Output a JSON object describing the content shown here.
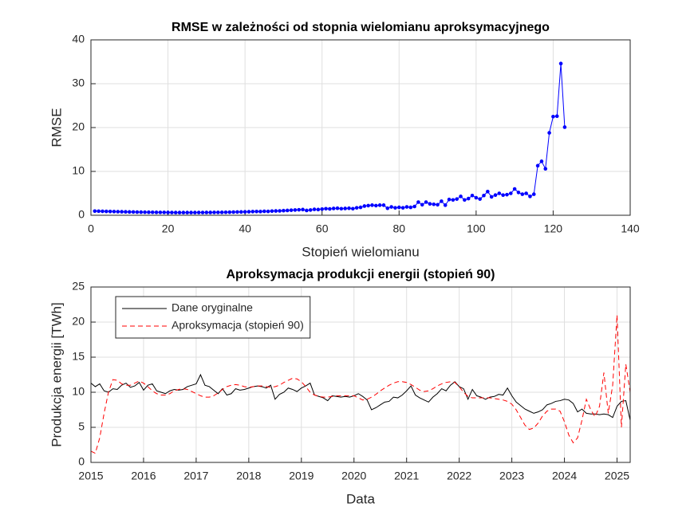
{
  "chart_data": [
    {
      "type": "line",
      "title": "RMSE w zależności od stopnia wielomianu aproksymacyjnego",
      "xlabel": "Stopień wielomianu",
      "ylabel": "RMSE",
      "xlim": [
        0,
        140
      ],
      "xticks": [
        0,
        20,
        40,
        60,
        80,
        100,
        120,
        140
      ],
      "ylim": [
        0,
        40
      ],
      "yticks": [
        0,
        10,
        20,
        30,
        40
      ],
      "grid": true,
      "x": [
        1,
        2,
        3,
        4,
        5,
        6,
        7,
        8,
        9,
        10,
        11,
        12,
        13,
        14,
        15,
        16,
        17,
        18,
        19,
        20,
        21,
        22,
        23,
        24,
        25,
        26,
        27,
        28,
        29,
        30,
        31,
        32,
        33,
        34,
        35,
        36,
        37,
        38,
        39,
        40,
        41,
        42,
        43,
        44,
        45,
        46,
        47,
        48,
        49,
        50,
        51,
        52,
        53,
        54,
        55,
        56,
        57,
        58,
        59,
        60,
        61,
        62,
        63,
        64,
        65,
        66,
        67,
        68,
        69,
        70,
        71,
        72,
        73,
        74,
        75,
        76,
        77,
        78,
        79,
        80,
        81,
        82,
        83,
        84,
        85,
        86,
        87,
        88,
        89,
        90,
        91,
        92,
        93,
        94,
        95,
        96,
        97,
        98,
        99,
        100,
        101,
        102,
        103,
        104,
        105,
        106,
        107,
        108,
        109,
        110,
        111,
        112,
        113,
        114,
        115,
        116,
        117,
        118,
        119,
        120,
        121,
        122,
        123
      ],
      "series": [
        {
          "color": "#0000ff",
          "marker": "o",
          "values": [
            0.95,
            0.93,
            0.9,
            0.88,
            0.86,
            0.84,
            0.82,
            0.8,
            0.78,
            0.76,
            0.74,
            0.72,
            0.71,
            0.7,
            0.69,
            0.68,
            0.67,
            0.66,
            0.65,
            0.64,
            0.63,
            0.62,
            0.62,
            0.62,
            0.62,
            0.62,
            0.62,
            0.63,
            0.63,
            0.64,
            0.64,
            0.65,
            0.66,
            0.67,
            0.68,
            0.7,
            0.72,
            0.74,
            0.76,
            0.78,
            0.8,
            0.83,
            0.86,
            0.85,
            0.9,
            0.88,
            0.95,
            0.98,
            1.0,
            1.05,
            1.1,
            1.15,
            1.2,
            1.25,
            1.3,
            1.1,
            1.2,
            1.35,
            1.3,
            1.4,
            1.5,
            1.45,
            1.55,
            1.6,
            1.5,
            1.55,
            1.6,
            1.5,
            1.7,
            1.8,
            2.1,
            2.2,
            2.3,
            2.2,
            2.3,
            2.3,
            1.6,
            1.9,
            1.7,
            1.8,
            1.7,
            1.9,
            1.8,
            2.0,
            3.0,
            2.4,
            3.0,
            2.6,
            2.5,
            2.4,
            3.2,
            2.3,
            3.6,
            3.5,
            3.7,
            4.3,
            3.5,
            3.8,
            4.5,
            4.0,
            3.7,
            4.5,
            5.4,
            4.2,
            4.6,
            5.0,
            4.6,
            4.7,
            5.0,
            6.0,
            5.2,
            4.8,
            5.0,
            4.3,
            4.8,
            11.3,
            12.3,
            10.6,
            18.8,
            22.5,
            22.6,
            34.6,
            20.1
          ]
        }
      ]
    },
    {
      "type": "line",
      "title": "Aproksymacja produkcji energii (stopień 90)",
      "xlabel": "Data",
      "ylabel": "Produkcja energii [TWh]",
      "xlim": [
        2015,
        2025.25
      ],
      "xticks": [
        2015,
        2016,
        2017,
        2018,
        2019,
        2020,
        2021,
        2022,
        2023,
        2024,
        2025
      ],
      "ylim": [
        0,
        25
      ],
      "yticks": [
        0,
        5,
        10,
        15,
        20,
        25
      ],
      "grid": true,
      "legend": "northwest",
      "x": [
        2015,
        2015.083,
        2015.167,
        2015.25,
        2015.333,
        2015.417,
        2015.5,
        2015.583,
        2015.667,
        2015.75,
        2015.833,
        2015.917,
        2016,
        2016.083,
        2016.167,
        2016.25,
        2016.333,
        2016.417,
        2016.5,
        2016.583,
        2016.667,
        2016.75,
        2016.833,
        2016.917,
        2017,
        2017.083,
        2017.167,
        2017.25,
        2017.333,
        2017.417,
        2017.5,
        2017.583,
        2017.667,
        2017.75,
        2017.833,
        2017.917,
        2018,
        2018.083,
        2018.167,
        2018.25,
        2018.333,
        2018.417,
        2018.5,
        2018.583,
        2018.667,
        2018.75,
        2018.833,
        2018.917,
        2019,
        2019.083,
        2019.167,
        2019.25,
        2019.333,
        2019.417,
        2019.5,
        2019.583,
        2019.667,
        2019.75,
        2019.833,
        2019.917,
        2020,
        2020.083,
        2020.167,
        2020.25,
        2020.333,
        2020.417,
        2020.5,
        2020.583,
        2020.667,
        2020.75,
        2020.833,
        2020.917,
        2021,
        2021.083,
        2021.167,
        2021.25,
        2021.333,
        2021.417,
        2021.5,
        2021.583,
        2021.667,
        2021.75,
        2021.833,
        2021.917,
        2022,
        2022.083,
        2022.167,
        2022.25,
        2022.333,
        2022.417,
        2022.5,
        2022.583,
        2022.667,
        2022.75,
        2022.833,
        2022.917,
        2023,
        2023.083,
        2023.167,
        2023.25,
        2023.333,
        2023.417,
        2023.5,
        2023.583,
        2023.667,
        2023.75,
        2023.833,
        2023.917,
        2024,
        2024.083,
        2024.167,
        2024.25,
        2024.333,
        2024.417,
        2024.5,
        2024.583,
        2024.667,
        2024.75,
        2024.833,
        2024.917,
        2025,
        2025.083,
        2025.167,
        2025.25
      ],
      "series": [
        {
          "name": "Dane oryginalne",
          "color": "#000000",
          "dash": "solid",
          "values": [
            11.3,
            10.8,
            11.2,
            10.2,
            10.0,
            10.5,
            10.4,
            11.0,
            11.3,
            10.7,
            10.9,
            11.4,
            10.3,
            11.0,
            11.2,
            10.2,
            10.0,
            9.8,
            10.2,
            10.4,
            10.3,
            10.4,
            10.8,
            11.0,
            11.2,
            12.5,
            11.0,
            10.8,
            10.3,
            9.8,
            10.5,
            9.6,
            9.8,
            10.5,
            10.3,
            10.4,
            10.6,
            10.8,
            10.9,
            10.8,
            10.6,
            11.0,
            9.0,
            9.7,
            10.0,
            10.6,
            10.4,
            10.1,
            10.6,
            10.9,
            11.3,
            9.6,
            9.4,
            9.2,
            8.8,
            9.5,
            9.4,
            9.3,
            9.4,
            9.3,
            9.5,
            9.8,
            9.4,
            8.9,
            7.5,
            7.8,
            8.2,
            8.6,
            8.7,
            9.3,
            9.2,
            9.6,
            10.2,
            10.9,
            9.6,
            9.2,
            8.9,
            8.6,
            9.3,
            9.8,
            10.5,
            10.2,
            11.0,
            11.5,
            10.8,
            10.5,
            9.0,
            10.4,
            9.5,
            9.3,
            9.0,
            9.3,
            9.4,
            9.7,
            9.6,
            10.6,
            9.5,
            8.6,
            8.1,
            7.6,
            7.3,
            7.0,
            7.2,
            7.5,
            8.2,
            8.4,
            8.7,
            8.8,
            9.0,
            8.9,
            8.4,
            7.2,
            7.6,
            7.0,
            6.9,
            6.9,
            6.8,
            6.9,
            6.8,
            6.4,
            8.0,
            8.7,
            8.8,
            6.0
          ]
        },
        {
          "name": "Aproksymacja (stopień 90)",
          "color": "#ff0000",
          "dash": "dashed",
          "values": [
            1.6,
            1.3,
            3.5,
            7.0,
            10.0,
            11.8,
            11.7,
            11.2,
            11.0,
            11.0,
            11.3,
            11.6,
            11.3,
            10.8,
            10.2,
            9.8,
            9.6,
            9.6,
            9.8,
            10.2,
            10.4,
            10.5,
            10.4,
            10.1,
            9.8,
            9.5,
            9.3,
            9.3,
            9.5,
            9.9,
            10.4,
            10.8,
            11.0,
            11.1,
            11.0,
            10.8,
            10.7,
            10.8,
            10.9,
            10.9,
            10.8,
            10.7,
            10.8,
            11.0,
            11.4,
            11.7,
            12.0,
            11.9,
            11.5,
            10.8,
            10.0,
            9.6,
            9.4,
            9.3,
            9.3,
            9.4,
            9.5,
            9.5,
            9.5,
            9.5,
            9.5,
            9.2,
            8.9,
            9.0,
            9.3,
            9.7,
            10.2,
            10.6,
            11.0,
            11.3,
            11.5,
            11.5,
            11.4,
            11.1,
            10.7,
            10.3,
            10.1,
            10.2,
            10.5,
            10.9,
            11.2,
            11.4,
            11.5,
            11.4,
            10.8,
            10.0,
            9.4,
            9.2,
            9.2,
            9.2,
            9.2,
            9.2,
            9.1,
            9.0,
            8.9,
            8.7,
            8.3,
            7.5,
            6.4,
            5.3,
            4.7,
            4.9,
            5.6,
            6.6,
            7.3,
            7.6,
            7.6,
            7.3,
            5.8,
            3.9,
            2.8,
            3.5,
            6.0,
            9.0,
            7.5,
            6.5,
            8.0,
            12.8,
            7.0,
            11.0,
            21.0,
            5.0,
            14.0,
            10.0
          ]
        }
      ]
    }
  ]
}
